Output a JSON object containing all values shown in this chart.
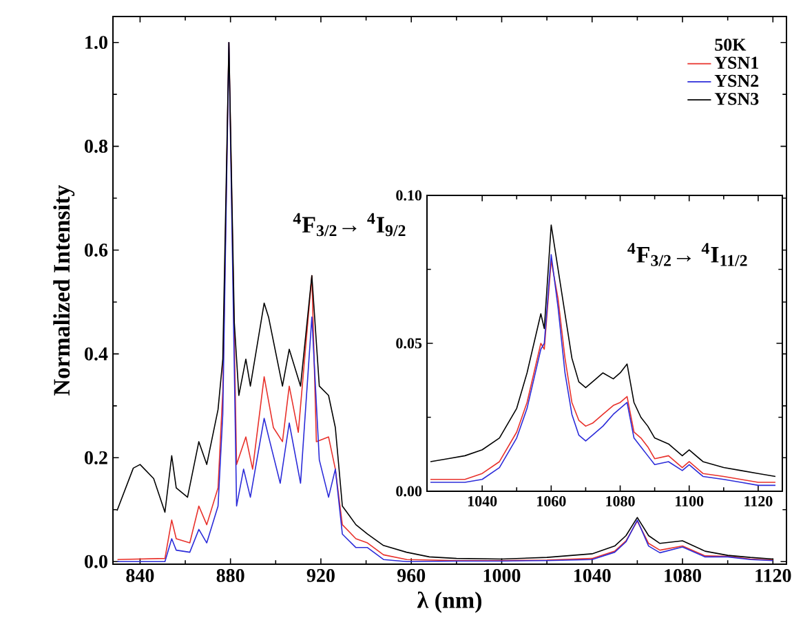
{
  "chart_data": [
    {
      "type": "line",
      "xlabel": "λ (nm)",
      "ylabel": "Normalized Intensity",
      "xlim": [
        828,
        1126
      ],
      "ylim": [
        -0.005,
        1.05
      ],
      "xticks": [
        840,
        880,
        920,
        960,
        1000,
        1040,
        1080,
        1120
      ],
      "yticks": [
        {
          "value": 0,
          "label": "0.0"
        },
        {
          "value": 0.2,
          "label": "0.2"
        },
        {
          "value": 0.4,
          "label": "0.4"
        },
        {
          "value": 0.6,
          "label": "0.6"
        },
        {
          "value": 0.8,
          "label": "0.8"
        },
        {
          "value": 1,
          "label": "1.0"
        }
      ],
      "legend": "top right",
      "legend_title": "50K",
      "annotations": [
        "$^{4}$F$_{3/2}$→ $^{4}$I$_{9/2}$"
      ],
      "series": [
        {
          "name": "YSN1",
          "color": "#e8302a",
          "x": [
            830,
            851,
            854,
            856,
            862,
            866,
            869.5,
            874.5,
            876.6,
            879.3,
            882.7,
            886.8,
            889.8,
            894.9,
            899,
            903,
            906,
            910,
            916,
            918,
            923.4,
            926.4,
            929.5,
            935.5,
            940.6,
            947.7,
            958,
            980,
            1000,
            1020,
            1040,
            1050,
            1055,
            1060,
            1065,
            1070,
            1080,
            1090,
            1100,
            1110,
            1120
          ],
          "values": [
            0.004,
            0.006,
            0.08,
            0.044,
            0.036,
            0.107,
            0.071,
            0.142,
            0.329,
            1.0,
            0.187,
            0.24,
            0.178,
            0.356,
            0.258,
            0.231,
            0.338,
            0.249,
            0.551,
            0.231,
            0.24,
            0.178,
            0.071,
            0.044,
            0.036,
            0.013,
            0.004,
            0.002,
            0.002,
            0.003,
            0.006,
            0.02,
            0.04,
            0.078,
            0.035,
            0.022,
            0.03,
            0.011,
            0.01,
            0.005,
            0.003
          ]
        },
        {
          "name": "YSN2",
          "color": "#2b2bd9",
          "x": [
            830,
            851,
            854,
            856,
            862,
            866,
            869.5,
            874.5,
            876.6,
            879.3,
            882.7,
            885.8,
            888.8,
            894.9,
            896.9,
            902,
            906,
            911,
            916,
            919.3,
            923.4,
            926.4,
            929.5,
            935.5,
            940.6,
            947.7,
            958,
            980,
            1000,
            1020,
            1040,
            1050,
            1055,
            1060,
            1065,
            1070,
            1080,
            1090,
            1100,
            1110,
            1120
          ],
          "values": [
            0,
            0,
            0.044,
            0.022,
            0.018,
            0.062,
            0.036,
            0.107,
            0.284,
            1.0,
            0.107,
            0.178,
            0.124,
            0.276,
            0.24,
            0.151,
            0.267,
            0.151,
            0.471,
            0.196,
            0.124,
            0.178,
            0.053,
            0.027,
            0.027,
            0.004,
            0,
            0.001,
            0.001,
            0.002,
            0.004,
            0.018,
            0.038,
            0.08,
            0.03,
            0.017,
            0.028,
            0.009,
            0.009,
            0.004,
            0.002
          ]
        },
        {
          "name": "YSN3",
          "color": "#000000",
          "x": [
            829.8,
            837,
            840,
            846,
            851,
            854,
            856,
            861,
            866,
            869.5,
            874.5,
            876.6,
            879.3,
            881.7,
            883.7,
            886.8,
            888.8,
            894.9,
            896.9,
            903,
            906,
            911,
            916,
            919.3,
            923.4,
            926.4,
            929.5,
            935.5,
            940.6,
            947.7,
            957.9,
            968,
            980,
            1000,
            1020,
            1040,
            1050,
            1055,
            1060,
            1065,
            1070,
            1080,
            1090,
            1100,
            1110,
            1120
          ],
          "values": [
            0.098,
            0.18,
            0.187,
            0.16,
            0.095,
            0.204,
            0.142,
            0.124,
            0.231,
            0.187,
            0.293,
            0.39,
            1.0,
            0.46,
            0.32,
            0.39,
            0.338,
            0.498,
            0.47,
            0.338,
            0.409,
            0.338,
            0.551,
            0.338,
            0.32,
            0.258,
            0.107,
            0.071,
            0.053,
            0.031,
            0.018,
            0.009,
            0.006,
            0.005,
            0.008,
            0.015,
            0.03,
            0.05,
            0.085,
            0.05,
            0.035,
            0.04,
            0.02,
            0.012,
            0.008,
            0.005
          ]
        }
      ]
    },
    {
      "type": "line",
      "xlim": [
        1024,
        1127
      ],
      "ylim": [
        0,
        0.1
      ],
      "xticks": [
        1040,
        1060,
        1080,
        1100,
        1120
      ],
      "yticks": [
        {
          "value": 0,
          "label": "0.00"
        },
        {
          "value": 0.05,
          "label": "0.05"
        },
        {
          "value": 0.1,
          "label": "0.10"
        }
      ],
      "annotations": [
        "$^{4}$F$_{3/2}$→ $^{4}$I$_{11/2}$"
      ],
      "series": [
        {
          "color": "#e8302a",
          "x": [
            1025,
            1030,
            1035,
            1040,
            1045,
            1050,
            1053,
            1055,
            1057,
            1058,
            1060,
            1062,
            1064,
            1066,
            1068,
            1070,
            1072,
            1075,
            1078,
            1080,
            1082,
            1084,
            1086,
            1088,
            1090,
            1094,
            1098,
            1100,
            1104,
            1110,
            1115,
            1120,
            1125
          ],
          "values": [
            0.004,
            0.004,
            0.004,
            0.006,
            0.01,
            0.02,
            0.03,
            0.04,
            0.05,
            0.048,
            0.078,
            0.065,
            0.045,
            0.03,
            0.024,
            0.022,
            0.023,
            0.026,
            0.029,
            0.03,
            0.032,
            0.02,
            0.018,
            0.015,
            0.011,
            0.012,
            0.008,
            0.01,
            0.006,
            0.005,
            0.004,
            0.003,
            0.003
          ]
        },
        {
          "color": "#2b2bd9",
          "x": [
            1025,
            1030,
            1035,
            1040,
            1045,
            1050,
            1053,
            1055,
            1057,
            1058,
            1060,
            1062,
            1064,
            1066,
            1068,
            1070,
            1072,
            1075,
            1078,
            1080,
            1082,
            1084,
            1086,
            1088,
            1090,
            1094,
            1098,
            1100,
            1104,
            1110,
            1115,
            1120,
            1125
          ],
          "values": [
            0.003,
            0.003,
            0.003,
            0.004,
            0.008,
            0.018,
            0.028,
            0.038,
            0.048,
            0.05,
            0.08,
            0.062,
            0.04,
            0.026,
            0.019,
            0.017,
            0.019,
            0.022,
            0.026,
            0.028,
            0.03,
            0.018,
            0.015,
            0.012,
            0.009,
            0.01,
            0.007,
            0.009,
            0.005,
            0.004,
            0.003,
            0.002,
            0.002
          ]
        },
        {
          "color": "#000000",
          "x": [
            1025,
            1030,
            1035,
            1040,
            1045,
            1050,
            1053,
            1055,
            1057,
            1058,
            1060,
            1062,
            1064,
            1066,
            1068,
            1070,
            1072,
            1075,
            1078,
            1080,
            1082,
            1084,
            1086,
            1088,
            1090,
            1094,
            1098,
            1100,
            1104,
            1110,
            1115,
            1120,
            1125
          ],
          "values": [
            0.01,
            0.011,
            0.012,
            0.014,
            0.018,
            0.028,
            0.04,
            0.05,
            0.06,
            0.055,
            0.09,
            0.075,
            0.06,
            0.045,
            0.037,
            0.035,
            0.037,
            0.04,
            0.038,
            0.04,
            0.043,
            0.03,
            0.025,
            0.022,
            0.018,
            0.016,
            0.012,
            0.014,
            0.01,
            0.008,
            0.007,
            0.006,
            0.005
          ]
        }
      ]
    }
  ]
}
